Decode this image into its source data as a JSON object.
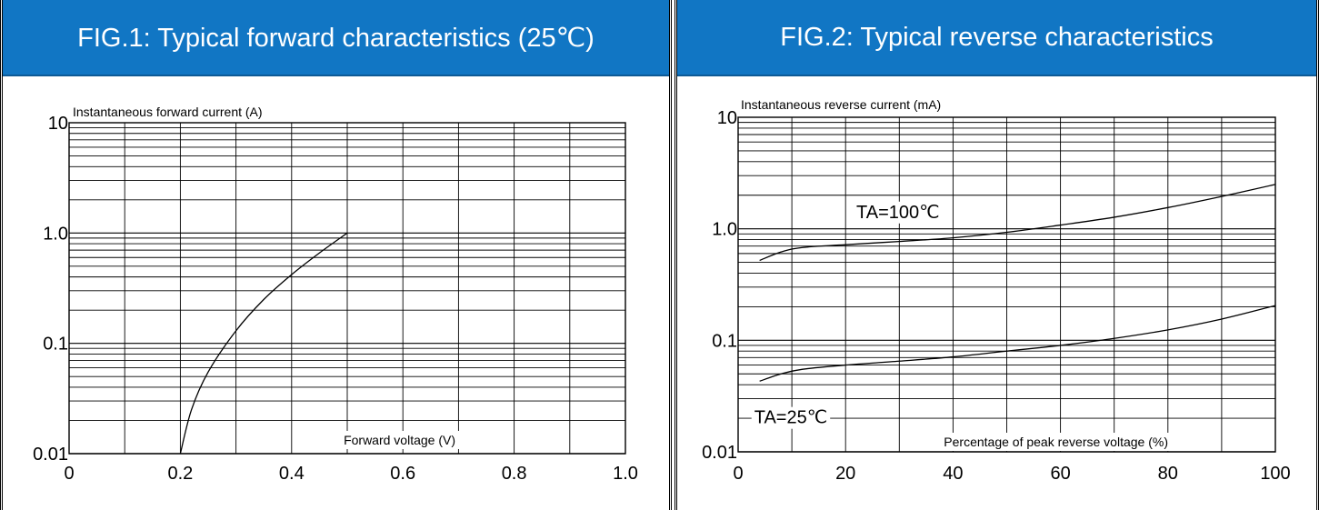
{
  "panels": [
    {
      "header": "FIG.1: Typical forward characteristics (25℃)"
    },
    {
      "header": "FIG.2: Typical reverse characteristics"
    }
  ],
  "chart_data": [
    {
      "type": "line",
      "title": "FIG.1: Typical forward characteristics (25℃)",
      "ylabel": "Instantaneous forward current (A)",
      "xlabel": "Forward voltage (V)",
      "x_ticks": [
        "0",
        "0.2",
        "0.4",
        "0.6",
        "0.8",
        "1.0"
      ],
      "y_ticks": [
        "10",
        "1.0",
        "0.1",
        "0.01"
      ],
      "xlim": [
        0,
        1.0
      ],
      "ylim": [
        0.01,
        10
      ],
      "yscale": "log",
      "grid": true,
      "series": [
        {
          "x": [
            0.2,
            0.22,
            0.25,
            0.3,
            0.35,
            0.4,
            0.45,
            0.5
          ],
          "y": [
            0.01,
            0.025,
            0.055,
            0.13,
            0.25,
            0.42,
            0.66,
            1.0
          ]
        }
      ]
    },
    {
      "type": "line",
      "title": "FIG.2: Typical reverse characteristics",
      "ylabel": "Instantaneous reverse current (mA)",
      "xlabel": "Percentage of peak reverse voltage (%)",
      "x_ticks": [
        "0",
        "20",
        "40",
        "60",
        "80",
        "100"
      ],
      "y_ticks": [
        "10",
        "1.0",
        "0.1",
        "0.01"
      ],
      "xlim": [
        0,
        100
      ],
      "ylim": [
        0.01,
        10
      ],
      "yscale": "log",
      "grid": true,
      "series": [
        {
          "name": "TA=100℃",
          "x": [
            4,
            8,
            12,
            20,
            30,
            40,
            50,
            60,
            70,
            80,
            90,
            100
          ],
          "y": [
            0.52,
            0.62,
            0.68,
            0.72,
            0.77,
            0.83,
            0.93,
            1.08,
            1.27,
            1.55,
            1.95,
            2.5
          ]
        },
        {
          "name": "TA=25℃",
          "x": [
            4,
            8,
            12,
            20,
            30,
            40,
            50,
            60,
            70,
            80,
            90,
            100
          ],
          "y": [
            0.043,
            0.05,
            0.055,
            0.06,
            0.065,
            0.071,
            0.08,
            0.09,
            0.104,
            0.124,
            0.155,
            0.205
          ]
        }
      ]
    }
  ]
}
